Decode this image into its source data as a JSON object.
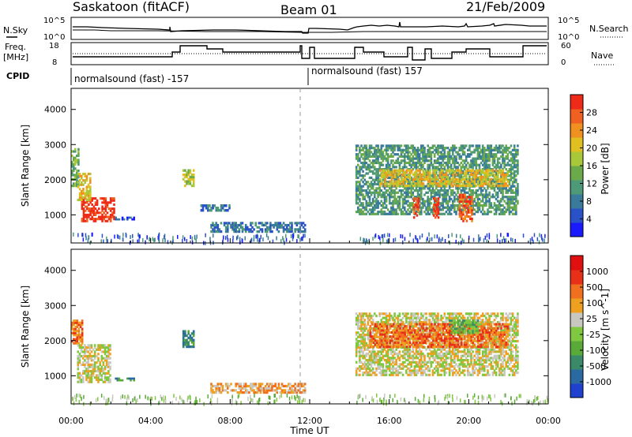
{
  "header": {
    "station": "Saskatoon (fitACF)",
    "beam": "Beam 01",
    "date": "21/Feb/2009"
  },
  "top_panel": {
    "nsky_label": "N.Sky",
    "nsky_ticks": [
      "10^5",
      "10^0"
    ],
    "nsearch_label": "N.Search",
    "freq_label_line1": "Freq.",
    "freq_label_line2": "[MHz]",
    "freq_ticks": [
      "18",
      "8"
    ],
    "nave_ticks": [
      "60",
      "0"
    ],
    "nave_label": "Nave",
    "cpid_label": "CPID",
    "cpid_segments": [
      "normalsound (fast) -157",
      "normalsound (fast) 157"
    ]
  },
  "chart_data": [
    {
      "type": "heatmap",
      "title": "",
      "xlabel": "Time UT",
      "ylabel": "Slant Range [km]",
      "x_ticks": [
        "00:00",
        "04:00",
        "08:00",
        "12:00",
        "16:00",
        "20:00",
        "00:00"
      ],
      "y_ticks": [
        1000,
        2000,
        3000,
        4000
      ],
      "ylim": [
        200,
        4600
      ],
      "xlim_hours": [
        0,
        24
      ],
      "colorbar": {
        "label": "Power [dB]",
        "ticks": [
          4,
          8,
          12,
          16,
          20,
          24,
          28
        ],
        "colors": [
          "#1a1aff",
          "#2a52c8",
          "#3a7a9a",
          "#4e9a78",
          "#6aaa4a",
          "#a8c83a",
          "#e0c020",
          "#f09020",
          "#f06020",
          "#ee2a18"
        ]
      },
      "echo_regions": [
        {
          "t0": 0.0,
          "t1": 0.4,
          "r0": 1800,
          "r1": 2900,
          "level": 4
        },
        {
          "t0": 0.5,
          "t1": 2.2,
          "r0": 800,
          "r1": 1500,
          "level": 9
        },
        {
          "t0": 0.3,
          "t1": 1.0,
          "r0": 1400,
          "r1": 2200,
          "level": 6
        },
        {
          "t0": 2.2,
          "t1": 3.2,
          "r0": 850,
          "r1": 950,
          "level": 1
        },
        {
          "t0": 5.6,
          "t1": 6.2,
          "r0": 1800,
          "r1": 2300,
          "level": 5
        },
        {
          "t0": 6.5,
          "t1": 8.0,
          "r0": 1100,
          "r1": 1300,
          "level": 2
        },
        {
          "t0": 7.0,
          "t1": 11.8,
          "r0": 500,
          "r1": 800,
          "level": 2
        },
        {
          "t0": 14.3,
          "t1": 22.5,
          "r0": 1000,
          "r1": 3000,
          "level": 3
        },
        {
          "t0": 15.5,
          "t1": 22.0,
          "r0": 1800,
          "r1": 2300,
          "level": 6
        },
        {
          "t0": 17.2,
          "t1": 17.5,
          "r0": 900,
          "r1": 1500,
          "level": 8
        },
        {
          "t0": 18.2,
          "t1": 18.5,
          "r0": 900,
          "r1": 1500,
          "level": 9
        },
        {
          "t0": 19.5,
          "t1": 20.2,
          "r0": 800,
          "r1": 1600,
          "level": 8
        }
      ]
    },
    {
      "type": "heatmap",
      "title": "",
      "xlabel": "Time UT",
      "ylabel": "Slant Range [km]",
      "x_ticks": [
        "00:00",
        "04:00",
        "08:00",
        "12:00",
        "16:00",
        "20:00",
        "00:00"
      ],
      "y_ticks": [
        1000,
        2000,
        3000,
        4000
      ],
      "ylim": [
        200,
        4600
      ],
      "xlim_hours": [
        0,
        24
      ],
      "colorbar": {
        "label": "Velocity [m s^-1]",
        "ticks": [
          "1000",
          "500",
          "100",
          "25",
          "-25",
          "-100",
          "-500",
          "-1000"
        ],
        "colors": [
          "#2040d0",
          "#2a6aa0",
          "#3a8a6a",
          "#5aaa3a",
          "#80c840",
          "#c8c8c0",
          "#f0a020",
          "#f07020",
          "#e83018",
          "#e01010"
        ]
      },
      "echo_regions": [
        {
          "t0": 0.0,
          "t1": 0.6,
          "r0": 1900,
          "r1": 2600,
          "level": 7
        },
        {
          "t0": 0.3,
          "t1": 2.0,
          "r0": 800,
          "r1": 1900,
          "level": 5
        },
        {
          "t0": 2.2,
          "t1": 3.2,
          "r0": 850,
          "r1": 950,
          "level": 2
        },
        {
          "t0": 5.6,
          "t1": 6.2,
          "r0": 1800,
          "r1": 2300,
          "level": 2
        },
        {
          "t0": 7.0,
          "t1": 11.8,
          "r0": 500,
          "r1": 800,
          "level": 6
        },
        {
          "t0": 14.3,
          "t1": 22.5,
          "r0": 1000,
          "r1": 2800,
          "level": 5
        },
        {
          "t0": 15.0,
          "t1": 22.0,
          "r0": 1800,
          "r1": 2500,
          "level": 7
        },
        {
          "t0": 19.0,
          "t1": 20.5,
          "r0": 2200,
          "r1": 2600,
          "level": 3
        }
      ]
    }
  ]
}
